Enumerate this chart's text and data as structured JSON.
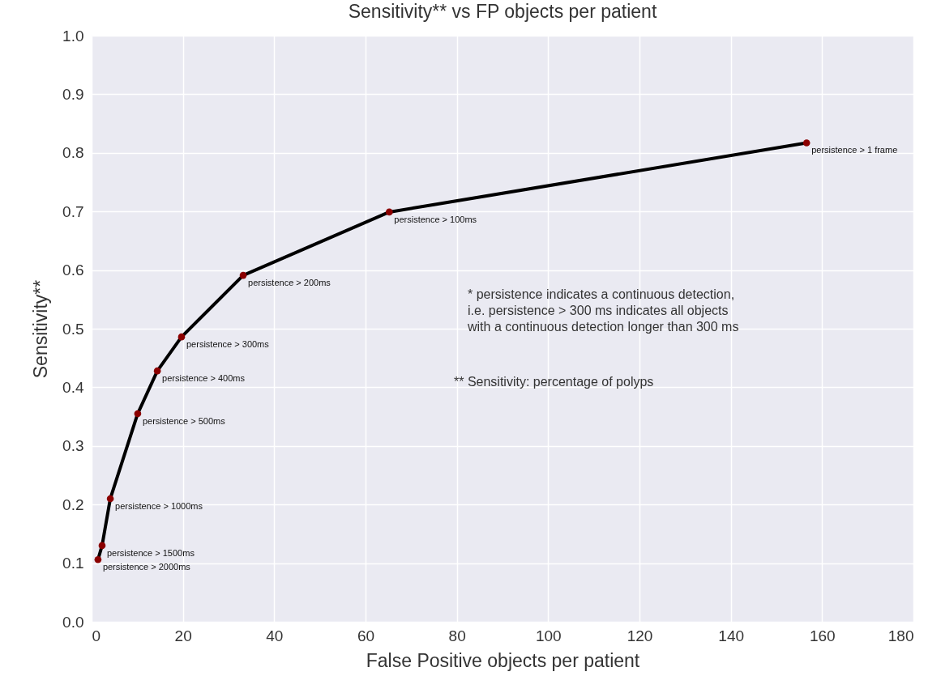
{
  "chart_data": {
    "type": "line",
    "title": "Sensitivity** vs FP objects per patient",
    "xlabel": "False Positive objects per patient",
    "ylabel": "Sensitivity**",
    "x": [
      1.4,
      2.3,
      4.1,
      10.1,
      14.4,
      19.7,
      33.2,
      65.2,
      156.6
    ],
    "series": [
      {
        "color": "#000000",
        "marker": "none",
        "values": [
          0.106,
          0.13,
          0.21,
          0.355,
          0.428,
          0.486,
          0.591,
          0.699,
          0.817
        ]
      },
      {
        "type": "scatter",
        "color": "#8b0000",
        "values": [
          0.106,
          0.13,
          0.21,
          0.355,
          0.428,
          0.486,
          0.591,
          0.699,
          0.817
        ]
      }
    ],
    "xlim": [
      0,
      180
    ],
    "xticks": [
      0,
      20,
      40,
      60,
      80,
      100,
      120,
      140,
      160,
      180
    ],
    "ylim": [
      0,
      1
    ],
    "yticks": [
      {
        "value": 0,
        "label": "0.0"
      },
      0.1,
      0.2,
      0.3,
      0.4,
      0.5,
      0.6,
      0.7,
      0.8,
      0.9,
      {
        "value": 1,
        "label": "1.0"
      }
    ],
    "grid": true,
    "marker": "circle",
    "line_style": "solid",
    "annotations": [
      {
        "text": "persistence > 2000ms",
        "x": 1.4,
        "y": 0.106
      },
      {
        "text": "persistence > 1500ms",
        "x": 2.3,
        "y": 0.13
      },
      {
        "text": "persistence > 1000ms",
        "x": 4.1,
        "y": 0.21
      },
      {
        "text": "persistence > 500ms",
        "x": 10.1,
        "y": 0.355
      },
      {
        "text": "persistence > 400ms",
        "x": 14.4,
        "y": 0.428
      },
      {
        "text": "persistence > 300ms",
        "x": 19.7,
        "y": 0.486
      },
      {
        "text": "persistence > 200ms",
        "x": 33.2,
        "y": 0.591
      },
      {
        "text": "persistence > 100ms",
        "x": 65.2,
        "y": 0.699
      },
      {
        "text": "persistence > 1 frame",
        "x": 156.6,
        "y": 0.817
      },
      "* persistence indicates a continuous detection,\n  i.e. persistence > 300 ms indicates all objects\n   with a continuous detection longer than 300 ms",
      "** Sensitivity: percentage of polyps"
    ]
  }
}
